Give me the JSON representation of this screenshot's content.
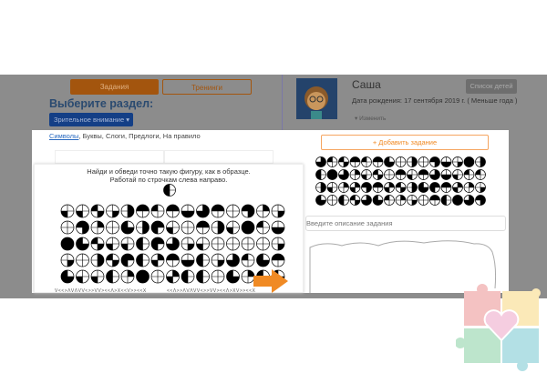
{
  "tabs": {
    "tasks": "Задания",
    "trainings": "Тренинги"
  },
  "section": {
    "title": "Выберите раздел:",
    "dropdown": "Зрительное внимание ▾"
  },
  "categories": [
    "Символы",
    "Буквы",
    "Слоги",
    "Предлоги",
    "На правило"
  ],
  "task": {
    "line1": "Найди и обведи точно такую фигуру, как в образце.",
    "line2": "Работай по строчкам слева направо."
  },
  "symbols_row1": "V<<>ΛVΛVV<>>VV><<Λ>X<<V>><<X",
  "symbols_row2": "<<Λ>>ΛVΛVV<>>VV><<Λ>XV>><<X",
  "profile": {
    "name": "Саша",
    "birth": "Дата рождения: 17 сентября 2019 г. ( Меньше года )",
    "edit": "▾ Изменить",
    "children_list": "Список детей"
  },
  "add_task": "+ Добавить задание",
  "description_placeholder": "Введите описание задания",
  "colors": {
    "accent": "#f08a24",
    "blue": "#1a5fc7",
    "overlay": "#8c8c8c"
  }
}
